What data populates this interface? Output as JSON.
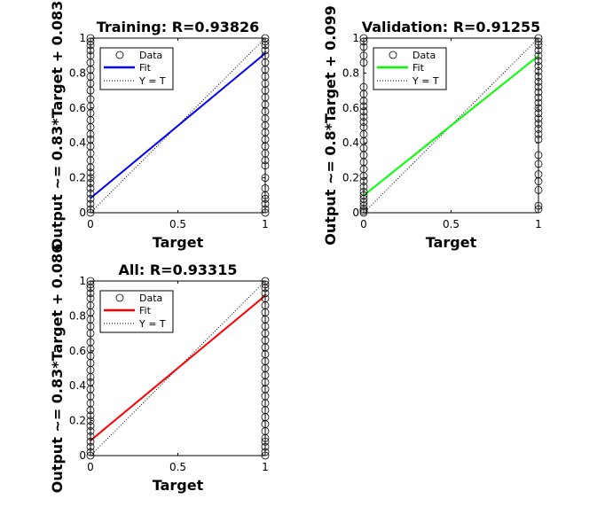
{
  "chart_data": [
    {
      "type": "scatter",
      "title": "Training: R=0.93826",
      "xlabel": "Target",
      "ylabel": "Output ~= 0.83*Target + 0.083",
      "xlim": [
        0,
        1
      ],
      "ylim": [
        0,
        1
      ],
      "xticks": [
        "0",
        "0.5",
        "1"
      ],
      "yticks": [
        "0",
        "0.2",
        "0.4",
        "0.6",
        "0.8",
        "1"
      ],
      "fit": {
        "slope": 0.83,
        "intercept": 0.083
      },
      "fit_color": "#0000ff",
      "legend": [
        "Data",
        "Fit",
        "Y = T"
      ],
      "legend_position": "top-left",
      "series": [
        {
          "name": "Data",
          "x": 0,
          "y": [
            0,
            0.02,
            0.05,
            0.08,
            0.11,
            0.14,
            0.17,
            0.2,
            0.23,
            0.26,
            0.3,
            0.34,
            0.38,
            0.42,
            0.45,
            0.49,
            0.53,
            0.57,
            0.61,
            0.65,
            0.7,
            0.74,
            0.78,
            0.82,
            0.86,
            0.9,
            0.93,
            0.96,
            0.98,
            1
          ]
        },
        {
          "name": "Data",
          "x": 1,
          "y": [
            0,
            0.02,
            0.05,
            0.08,
            0.1,
            0.14,
            0.2,
            0.27,
            0.3,
            0.34,
            0.38,
            0.42,
            0.46,
            0.5,
            0.54,
            0.58,
            0.62,
            0.66,
            0.7,
            0.74,
            0.78,
            0.82,
            0.86,
            0.9,
            0.93,
            0.96,
            0.98,
            1
          ]
        }
      ]
    },
    {
      "type": "scatter",
      "title": "Validation: R=0.91255",
      "xlabel": "Target",
      "ylabel": "Output ~= 0.8*Target + 0.099",
      "xlim": [
        0,
        1
      ],
      "ylim": [
        0,
        1
      ],
      "xticks": [
        "0",
        "0.5",
        "1"
      ],
      "yticks": [
        "0",
        "0.2",
        "0.4",
        "0.6",
        "0.8",
        "1"
      ],
      "fit": {
        "slope": 0.8,
        "intercept": 0.099
      },
      "fit_color": "#00ff00",
      "legend": [
        "Data",
        "Fit",
        "Y = T"
      ],
      "legend_position": "top-left",
      "series": [
        {
          "name": "Data",
          "x": 0,
          "y": [
            0,
            0.01,
            0.02,
            0.04,
            0.06,
            0.08,
            0.1,
            0.12,
            0.15,
            0.18,
            0.21,
            0.25,
            0.29,
            0.33,
            0.37,
            0.41,
            0.45,
            0.49,
            0.52,
            0.55,
            0.58,
            0.61,
            0.64,
            0.68,
            0.72,
            0.86,
            0.9,
            0.95,
            0.98,
            1
          ]
        },
        {
          "name": "Data",
          "x": 1,
          "y": [
            0.02,
            0.04,
            0.13,
            0.18,
            0.22,
            0.28,
            0.33,
            0.42,
            0.45,
            0.48,
            0.51,
            0.54,
            0.57,
            0.6,
            0.63,
            0.66,
            0.69,
            0.72,
            0.75,
            0.78,
            0.81,
            0.84,
            0.87,
            0.9,
            0.93,
            0.96,
            0.98,
            1
          ]
        }
      ]
    },
    {
      "type": "scatter",
      "title": "All: R=0.93315",
      "xlabel": "Target",
      "ylabel": "Output ~= 0.83*Target + 0.086",
      "xlim": [
        0,
        1
      ],
      "ylim": [
        0,
        1
      ],
      "xticks": [
        "0",
        "0.5",
        "1"
      ],
      "yticks": [
        "0",
        "0.2",
        "0.4",
        "0.6",
        "0.8",
        "1"
      ],
      "fit": {
        "slope": 0.83,
        "intercept": 0.086
      },
      "fit_color": "#ff0000",
      "legend": [
        "Data",
        "Fit",
        "Y = T"
      ],
      "legend_position": "top-left",
      "series": [
        {
          "name": "Data",
          "x": 0,
          "y": [
            0,
            0.02,
            0.05,
            0.08,
            0.11,
            0.14,
            0.17,
            0.2,
            0.23,
            0.26,
            0.3,
            0.34,
            0.38,
            0.42,
            0.45,
            0.49,
            0.53,
            0.57,
            0.61,
            0.65,
            0.7,
            0.74,
            0.78,
            0.82,
            0.86,
            0.9,
            0.93,
            0.96,
            0.98,
            1
          ]
        },
        {
          "name": "Data",
          "x": 1,
          "y": [
            0,
            0.02,
            0.05,
            0.08,
            0.1,
            0.14,
            0.18,
            0.22,
            0.26,
            0.3,
            0.34,
            0.38,
            0.42,
            0.46,
            0.5,
            0.54,
            0.58,
            0.62,
            0.66,
            0.7,
            0.74,
            0.78,
            0.82,
            0.86,
            0.9,
            0.93,
            0.96,
            0.98,
            1
          ]
        }
      ]
    }
  ]
}
